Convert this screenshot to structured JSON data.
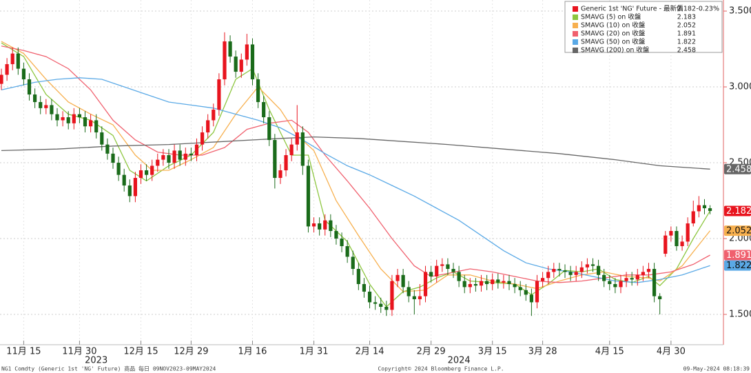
{
  "chart_data": {
    "type": "candlestick",
    "candles": {
      "name": "Generic 1st 'NG' Future - 最新價",
      "color": "#e8141e",
      "color_up": "#e8141e",
      "color_down": "#1a6b1a",
      "last": 2.182,
      "change": {
        "value": -0.23,
        "label": "-0.23%"
      },
      "badge": true,
      "open": [
        3.02,
        3.08,
        3.15,
        3.22,
        3.12,
        3.05,
        2.95,
        2.9,
        2.86,
        2.88,
        2.82,
        2.78,
        2.8,
        2.76,
        2.82,
        2.8,
        2.74,
        2.78,
        2.7,
        2.62,
        2.56,
        2.5,
        2.42,
        2.35,
        2.28,
        2.4,
        2.45,
        2.42,
        2.48,
        2.52,
        2.55,
        2.5,
        2.58,
        2.52,
        2.56,
        2.55,
        2.62,
        2.7,
        2.78,
        2.85,
        3.05,
        3.3,
        3.2,
        3.1,
        3.18,
        3.28,
        3.05,
        2.9,
        2.8,
        2.65,
        2.4,
        2.45,
        2.55,
        2.62,
        2.7,
        2.48,
        2.08,
        2.1,
        2.06,
        2.12,
        2.05,
        2.0,
        1.95,
        1.88,
        1.8,
        1.7,
        1.65,
        1.58,
        1.57,
        1.55,
        1.53,
        1.72,
        1.76,
        1.68,
        1.62,
        1.6,
        1.62,
        1.78,
        1.75,
        1.82,
        1.83,
        1.8,
        1.78,
        1.72,
        1.68,
        1.7,
        1.69,
        1.72,
        1.7,
        1.73,
        1.71,
        1.72,
        1.7,
        1.68,
        1.66,
        1.63,
        1.58,
        1.72,
        1.74,
        1.78,
        1.8,
        1.79,
        1.78,
        1.76,
        1.78,
        1.81,
        1.83,
        1.82,
        1.76,
        1.72,
        1.7,
        1.68,
        1.72,
        1.74,
        1.73,
        1.76,
        1.78,
        1.8,
        1.62,
        1.9,
        2.02,
        2.05,
        1.95,
        1.98,
        2.1,
        2.18,
        2.22,
        2.2
      ],
      "high": [
        3.12,
        3.19,
        3.26,
        3.26,
        3.16,
        3.09,
        2.99,
        2.94,
        2.92,
        2.92,
        2.86,
        2.84,
        2.84,
        2.86,
        2.86,
        2.84,
        2.82,
        2.82,
        2.74,
        2.66,
        2.6,
        2.54,
        2.46,
        2.39,
        2.44,
        2.49,
        2.49,
        2.52,
        2.56,
        2.59,
        2.59,
        2.62,
        2.62,
        2.6,
        2.6,
        2.66,
        2.74,
        2.82,
        2.89,
        3.09,
        3.36,
        3.34,
        3.24,
        3.22,
        3.35,
        3.32,
        3.09,
        2.94,
        2.84,
        2.69,
        2.49,
        2.59,
        2.66,
        2.88,
        2.74,
        2.52,
        2.14,
        2.14,
        2.16,
        2.16,
        2.09,
        2.04,
        1.99,
        1.92,
        1.84,
        1.74,
        1.69,
        1.62,
        1.61,
        1.59,
        1.76,
        1.8,
        1.8,
        1.72,
        1.66,
        1.7,
        1.82,
        1.82,
        1.86,
        1.87,
        1.87,
        1.84,
        1.82,
        1.76,
        1.74,
        1.74,
        1.76,
        1.76,
        1.77,
        1.77,
        1.76,
        1.76,
        1.74,
        1.72,
        1.7,
        1.67,
        1.76,
        1.78,
        1.82,
        1.84,
        1.84,
        1.83,
        1.82,
        1.82,
        1.85,
        1.87,
        1.87,
        1.86,
        1.8,
        1.76,
        1.74,
        1.76,
        1.78,
        1.78,
        1.8,
        1.82,
        1.84,
        1.84,
        1.64,
        2.05,
        2.08,
        2.08,
        2.02,
        2.14,
        2.25,
        2.28,
        2.26,
        2.22
      ],
      "low": [
        2.98,
        3.04,
        3.11,
        3.08,
        3.01,
        2.91,
        2.86,
        2.82,
        2.82,
        2.78,
        2.74,
        2.74,
        2.72,
        2.72,
        2.76,
        2.7,
        2.7,
        2.66,
        2.58,
        2.52,
        2.46,
        2.38,
        2.31,
        2.24,
        2.24,
        2.36,
        2.38,
        2.38,
        2.44,
        2.48,
        2.46,
        2.46,
        2.48,
        2.48,
        2.51,
        2.51,
        2.58,
        2.66,
        2.74,
        2.81,
        3.01,
        3.16,
        3.06,
        3.06,
        3.14,
        3.01,
        2.86,
        2.76,
        2.61,
        2.33,
        2.36,
        2.41,
        2.51,
        2.58,
        2.42,
        2.04,
        2.04,
        2.02,
        2.02,
        2.01,
        1.96,
        1.91,
        1.84,
        1.76,
        1.66,
        1.61,
        1.54,
        1.53,
        1.51,
        1.49,
        1.49,
        1.68,
        1.64,
        1.58,
        1.5,
        1.56,
        1.58,
        1.71,
        1.71,
        1.78,
        1.76,
        1.74,
        1.68,
        1.64,
        1.64,
        1.65,
        1.65,
        1.66,
        1.66,
        1.67,
        1.67,
        1.66,
        1.64,
        1.62,
        1.59,
        1.49,
        1.54,
        1.68,
        1.7,
        1.74,
        1.75,
        1.74,
        1.72,
        1.72,
        1.74,
        1.77,
        1.78,
        1.72,
        1.68,
        1.66,
        1.64,
        1.64,
        1.68,
        1.69,
        1.69,
        1.72,
        1.74,
        1.58,
        1.5,
        1.88,
        1.98,
        1.92,
        1.92,
        1.95,
        2.08,
        2.14,
        2.16,
        2.16
      ],
      "close": [
        3.08,
        3.15,
        3.22,
        3.12,
        3.05,
        2.95,
        2.9,
        2.86,
        2.88,
        2.82,
        2.78,
        2.8,
        2.76,
        2.82,
        2.8,
        2.74,
        2.78,
        2.7,
        2.62,
        2.56,
        2.5,
        2.42,
        2.35,
        2.28,
        2.4,
        2.45,
        2.42,
        2.48,
        2.52,
        2.55,
        2.5,
        2.58,
        2.52,
        2.56,
        2.55,
        2.62,
        2.7,
        2.78,
        2.85,
        3.05,
        3.3,
        3.2,
        3.1,
        3.18,
        3.28,
        3.05,
        2.9,
        2.8,
        2.65,
        2.4,
        2.45,
        2.55,
        2.62,
        2.7,
        2.48,
        2.08,
        2.1,
        2.06,
        2.12,
        2.05,
        2.0,
        1.95,
        1.88,
        1.8,
        1.7,
        1.65,
        1.58,
        1.57,
        1.55,
        1.53,
        1.72,
        1.76,
        1.68,
        1.62,
        1.6,
        1.62,
        1.78,
        1.75,
        1.82,
        1.83,
        1.8,
        1.78,
        1.72,
        1.68,
        1.7,
        1.69,
        1.72,
        1.7,
        1.73,
        1.71,
        1.72,
        1.7,
        1.68,
        1.66,
        1.63,
        1.58,
        1.72,
        1.74,
        1.78,
        1.8,
        1.79,
        1.78,
        1.76,
        1.78,
        1.81,
        1.83,
        1.82,
        1.76,
        1.72,
        1.7,
        1.68,
        1.72,
        1.74,
        1.73,
        1.76,
        1.78,
        1.8,
        1.62,
        1.6,
        2.02,
        2.05,
        1.95,
        1.98,
        2.1,
        2.18,
        2.22,
        2.2,
        2.182
      ]
    },
    "series": [
      {
        "name": "SMAVG (5)  on 收盤",
        "color": "#8dc63f",
        "last": 2.183,
        "badge": false,
        "x": [
          0,
          4,
          8,
          12,
          16,
          20,
          23,
          26,
          30,
          34,
          38,
          42,
          45,
          48,
          52,
          55,
          58,
          62,
          66,
          69,
          72,
          75,
          78,
          81,
          84,
          88,
          92,
          95,
          98,
          101,
          104,
          107,
          110,
          113,
          116,
          118,
          121,
          124,
          127
        ],
        "values": [
          3.29,
          3.2,
          2.95,
          2.82,
          2.78,
          2.68,
          2.45,
          2.38,
          2.48,
          2.55,
          2.7,
          3.05,
          3.12,
          2.85,
          2.55,
          2.55,
          2.12,
          1.98,
          1.7,
          1.55,
          1.65,
          1.68,
          1.74,
          1.78,
          1.72,
          1.71,
          1.7,
          1.63,
          1.7,
          1.79,
          1.78,
          1.8,
          1.73,
          1.71,
          1.75,
          1.69,
          1.8,
          2.0,
          2.183
        ]
      },
      {
        "name": "SMAVG (10)  on 收盤",
        "color": "#f7b04f",
        "last": 2.052,
        "badge": true,
        "x": [
          0,
          4,
          8,
          12,
          16,
          20,
          24,
          27,
          30,
          34,
          38,
          42,
          46,
          50,
          53,
          56,
          60,
          64,
          68,
          72,
          76,
          80,
          84,
          88,
          92,
          96,
          100,
          104,
          108,
          112,
          116,
          118,
          122,
          127
        ],
        "values": [
          3.3,
          3.22,
          3.05,
          2.9,
          2.82,
          2.75,
          2.55,
          2.45,
          2.45,
          2.52,
          2.6,
          2.82,
          3.0,
          2.85,
          2.68,
          2.58,
          2.25,
          2.02,
          1.8,
          1.65,
          1.66,
          1.76,
          1.76,
          1.72,
          1.7,
          1.67,
          1.72,
          1.76,
          1.78,
          1.75,
          1.74,
          1.72,
          1.82,
          2.052
        ]
      },
      {
        "name": "SMAVG (20)  on 收盤",
        "color": "#f0606e",
        "last": 1.891,
        "badge": true,
        "x": [
          0,
          4,
          8,
          12,
          16,
          20,
          24,
          28,
          32,
          36,
          40,
          44,
          48,
          52,
          55,
          58,
          62,
          66,
          70,
          74,
          77,
          80,
          84,
          88,
          92,
          96,
          100,
          104,
          108,
          112,
          116,
          120,
          124,
          127
        ],
        "values": [
          3.27,
          3.24,
          3.2,
          3.12,
          2.98,
          2.78,
          2.65,
          2.57,
          2.55,
          2.55,
          2.6,
          2.72,
          2.76,
          2.78,
          2.7,
          2.55,
          2.38,
          2.2,
          2.0,
          1.82,
          1.75,
          1.77,
          1.8,
          1.78,
          1.75,
          1.72,
          1.71,
          1.72,
          1.74,
          1.76,
          1.76,
          1.78,
          1.83,
          1.891
        ]
      },
      {
        "name": "SMAVG (50)  on 收盤",
        "color": "#5aa9e6",
        "last": 1.822,
        "badge": true,
        "x": [
          0,
          6,
          10,
          14,
          18,
          22,
          26,
          30,
          34,
          38,
          42,
          46,
          50,
          54,
          58,
          62,
          66,
          70,
          74,
          78,
          82,
          86,
          90,
          94,
          98,
          102,
          106,
          110,
          114,
          118,
          122,
          127
        ],
        "values": [
          2.98,
          3.03,
          3.05,
          3.06,
          3.05,
          3.0,
          2.95,
          2.9,
          2.88,
          2.86,
          2.82,
          2.78,
          2.73,
          2.65,
          2.56,
          2.48,
          2.42,
          2.35,
          2.28,
          2.2,
          2.12,
          2.02,
          1.92,
          1.84,
          1.8,
          1.78,
          1.75,
          1.72,
          1.71,
          1.73,
          1.76,
          1.822
        ]
      },
      {
        "name": "SMAVG (200)  on 收盤",
        "color": "#666666",
        "last": 2.458,
        "badge": true,
        "x": [
          0,
          10,
          20,
          30,
          40,
          50,
          56,
          64,
          72,
          80,
          90,
          100,
          110,
          118,
          127
        ],
        "values": [
          2.58,
          2.59,
          2.61,
          2.62,
          2.64,
          2.66,
          2.67,
          2.66,
          2.64,
          2.62,
          2.59,
          2.56,
          2.52,
          2.48,
          2.458
        ]
      }
    ],
    "xlim": [
      -0.25,
      129.4
    ],
    "xticks": [
      {
        "value": 4,
        "label": "11月 15"
      },
      {
        "value": 14,
        "label": "11月 30"
      },
      {
        "value": 25,
        "label": "12月 15"
      },
      {
        "value": 34,
        "label": "12月 29"
      },
      {
        "value": 45,
        "label": "1月 16"
      },
      {
        "value": 56,
        "label": "1月 31"
      },
      {
        "value": 66,
        "label": "2月 14"
      },
      {
        "value": 77,
        "label": "2月 29"
      },
      {
        "value": 88,
        "label": "3月 15"
      },
      {
        "value": 97,
        "label": "3月 28"
      },
      {
        "value": 109,
        "label": "4月 15"
      },
      {
        "value": 120,
        "label": "4月 30"
      }
    ],
    "year_labels": [
      {
        "value": 17,
        "label": "2023"
      },
      {
        "value": 82,
        "label": "2024"
      }
    ],
    "ylim": [
      1.3,
      3.573
    ],
    "yticks": [
      {
        "value": 1.5,
        "label": "1.500"
      },
      {
        "value": 2,
        "label": "2.000"
      },
      {
        "value": 2.5,
        "label": "2.500"
      },
      {
        "value": 3,
        "label": "3.000"
      },
      {
        "value": 3.5,
        "label": "3.500"
      }
    ],
    "grid": true,
    "footer": {
      "left": "NG1 Comdty (Generic 1st 'NG' Future) 商品  每日 09NOV2023-09MAY2024",
      "center": "Copyright© 2024 Bloomberg Finance L.P.",
      "right": "09-May-2024 08:18:39"
    }
  }
}
